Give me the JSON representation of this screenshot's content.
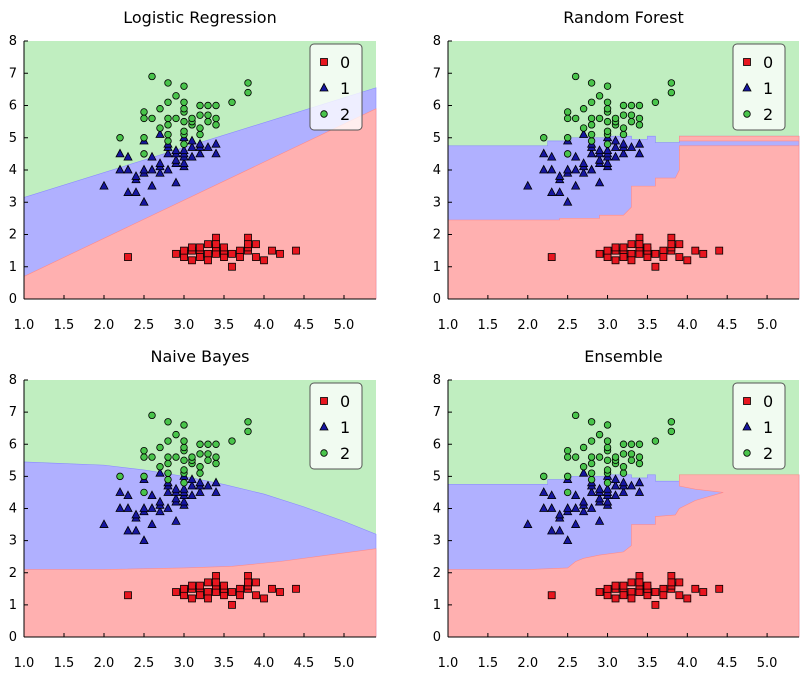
{
  "colors": {
    "class0_region": "#ffb0b0",
    "class1_region": "#b0b0ff",
    "class2_region": "#c0eec0",
    "class0_marker": "#e8161f",
    "class1_marker": "#1616a0",
    "class2_marker": "#49c44b",
    "axis": "#000000"
  },
  "chart_data": [
    {
      "type": "scatter",
      "title": "Logistic Regression",
      "xlim": [
        1.0,
        5.4
      ],
      "ylim": [
        0,
        8
      ],
      "xticks": [
        "1.0",
        "1.5",
        "2.0",
        "2.5",
        "3.0",
        "3.5",
        "4.0",
        "4.5",
        "5.0"
      ],
      "yticks": [
        "0",
        "1",
        "2",
        "3",
        "4",
        "5",
        "6",
        "7",
        "8"
      ],
      "legend": {
        "position": "top-right",
        "entries": [
          "0",
          "1",
          "2"
        ]
      },
      "regions": {
        "class0_upper": [
          [
            1.0,
            0.7
          ],
          [
            5.4,
            5.9
          ]
        ],
        "class1_upper": [
          [
            1.0,
            3.15
          ],
          [
            5.4,
            6.55
          ]
        ]
      }
    },
    {
      "type": "scatter",
      "title": "Random Forest",
      "xlim": [
        1.0,
        5.4
      ],
      "ylim": [
        0,
        8
      ],
      "xticks": [
        "1.0",
        "1.5",
        "2.0",
        "2.5",
        "3.0",
        "3.5",
        "4.0",
        "4.5",
        "5.0"
      ],
      "yticks": [
        "0",
        "1",
        "2",
        "3",
        "4",
        "5",
        "6",
        "7",
        "8"
      ],
      "legend": {
        "position": "top-right",
        "entries": [
          "0",
          "1",
          "2"
        ]
      },
      "regions": {
        "class0_upper": [
          [
            1.0,
            2.45
          ],
          [
            2.4,
            2.45
          ],
          [
            2.4,
            2.5
          ],
          [
            2.9,
            2.5
          ],
          [
            2.9,
            2.6
          ],
          [
            3.2,
            2.6
          ],
          [
            3.3,
            2.85
          ],
          [
            3.3,
            3.5
          ],
          [
            3.6,
            3.5
          ],
          [
            3.6,
            3.75
          ],
          [
            3.85,
            3.75
          ],
          [
            3.9,
            4.0
          ],
          [
            3.9,
            4.75
          ],
          [
            5.4,
            4.75
          ],
          [
            5.4,
            4.9
          ],
          [
            3.9,
            4.9
          ],
          [
            3.9,
            5.05
          ],
          [
            5.4,
            5.05
          ]
        ],
        "class1_upper": [
          [
            1.0,
            4.75
          ],
          [
            2.25,
            4.75
          ],
          [
            2.25,
            4.9
          ],
          [
            2.55,
            4.9
          ],
          [
            2.55,
            5.0
          ],
          [
            3.0,
            5.0
          ],
          [
            3.0,
            5.05
          ],
          [
            3.3,
            5.05
          ],
          [
            3.3,
            4.95
          ],
          [
            3.5,
            4.95
          ],
          [
            3.5,
            5.05
          ],
          [
            3.6,
            5.05
          ],
          [
            3.6,
            4.85
          ],
          [
            3.9,
            4.85
          ],
          [
            3.9,
            5.05
          ],
          [
            5.4,
            5.05
          ]
        ]
      }
    },
    {
      "type": "scatter",
      "title": "Naive Bayes",
      "xlim": [
        1.0,
        5.4
      ],
      "ylim": [
        0,
        8
      ],
      "xticks": [
        "1.0",
        "1.5",
        "2.0",
        "2.5",
        "3.0",
        "3.5",
        "4.0",
        "4.5",
        "5.0"
      ],
      "yticks": [
        "0",
        "1",
        "2",
        "3",
        "4",
        "5",
        "6",
        "7",
        "8"
      ],
      "legend": {
        "position": "top-right",
        "entries": [
          "0",
          "1",
          "2"
        ]
      },
      "regions": {
        "class0_upper": [
          [
            1.0,
            2.1
          ],
          [
            2.0,
            2.1
          ],
          [
            3.0,
            2.15
          ],
          [
            3.6,
            2.2
          ],
          [
            4.2,
            2.35
          ],
          [
            4.8,
            2.55
          ],
          [
            5.4,
            2.75
          ]
        ],
        "class1_upper": [
          [
            1.0,
            5.45
          ],
          [
            1.5,
            5.4
          ],
          [
            2.0,
            5.35
          ],
          [
            2.5,
            5.2
          ],
          [
            3.0,
            5.0
          ],
          [
            3.5,
            4.75
          ],
          [
            4.0,
            4.45
          ],
          [
            4.5,
            4.05
          ],
          [
            5.0,
            3.6
          ],
          [
            5.4,
            3.2
          ]
        ]
      }
    },
    {
      "type": "scatter",
      "title": "Ensemble",
      "xlim": [
        1.0,
        5.4
      ],
      "ylim": [
        0,
        8
      ],
      "xticks": [
        "1.0",
        "1.5",
        "2.0",
        "2.5",
        "3.0",
        "3.5",
        "4.0",
        "4.5",
        "5.0"
      ],
      "yticks": [
        "0",
        "1",
        "2",
        "3",
        "4",
        "5",
        "6",
        "7",
        "8"
      ],
      "legend": {
        "position": "top-right",
        "entries": [
          "0",
          "1",
          "2"
        ]
      },
      "regions": {
        "class0_upper": [
          [
            1.0,
            2.1
          ],
          [
            2.0,
            2.1
          ],
          [
            2.5,
            2.15
          ],
          [
            2.6,
            2.35
          ],
          [
            2.7,
            2.45
          ],
          [
            2.9,
            2.55
          ],
          [
            3.2,
            2.65
          ],
          [
            3.3,
            2.85
          ],
          [
            3.3,
            3.5
          ],
          [
            3.6,
            3.5
          ],
          [
            3.6,
            3.75
          ],
          [
            3.85,
            3.8
          ],
          [
            3.9,
            4.0
          ],
          [
            4.1,
            4.25
          ],
          [
            4.45,
            4.5
          ],
          [
            4.1,
            4.6
          ],
          [
            3.9,
            4.7
          ],
          [
            3.9,
            5.05
          ],
          [
            5.4,
            5.05
          ]
        ],
        "class1_upper": [
          [
            1.0,
            4.75
          ],
          [
            2.25,
            4.75
          ],
          [
            2.25,
            4.9
          ],
          [
            2.55,
            4.9
          ],
          [
            2.55,
            5.0
          ],
          [
            3.0,
            5.0
          ],
          [
            3.0,
            5.05
          ],
          [
            3.3,
            5.05
          ],
          [
            3.3,
            4.95
          ],
          [
            3.5,
            4.95
          ],
          [
            3.5,
            5.05
          ],
          [
            3.6,
            5.05
          ],
          [
            3.6,
            4.85
          ],
          [
            3.9,
            4.85
          ],
          [
            3.9,
            5.05
          ],
          [
            5.4,
            5.05
          ]
        ]
      }
    }
  ],
  "points": {
    "class0": [
      [
        2.3,
        1.3
      ],
      [
        2.9,
        1.4
      ],
      [
        3.0,
        1.4
      ],
      [
        3.0,
        1.3
      ],
      [
        3.0,
        1.5
      ],
      [
        3.1,
        1.5
      ],
      [
        3.1,
        1.6
      ],
      [
        3.1,
        1.2
      ],
      [
        3.2,
        1.4
      ],
      [
        3.2,
        1.6
      ],
      [
        3.2,
        1.3
      ],
      [
        3.3,
        1.4
      ],
      [
        3.3,
        1.7
      ],
      [
        3.3,
        1.2
      ],
      [
        3.4,
        1.5
      ],
      [
        3.4,
        1.4
      ],
      [
        3.4,
        1.9
      ],
      [
        3.4,
        1.6
      ],
      [
        3.4,
        1.7
      ],
      [
        3.5,
        1.4
      ],
      [
        3.5,
        1.3
      ],
      [
        3.5,
        1.5
      ],
      [
        3.5,
        1.6
      ],
      [
        3.6,
        1.4
      ],
      [
        3.6,
        1.0
      ],
      [
        3.7,
        1.5
      ],
      [
        3.7,
        1.3
      ],
      [
        3.8,
        1.5
      ],
      [
        3.8,
        1.9
      ],
      [
        3.8,
        1.6
      ],
      [
        3.8,
        1.7
      ],
      [
        3.9,
        1.3
      ],
      [
        3.9,
        1.7
      ],
      [
        4.0,
        1.2
      ],
      [
        4.1,
        1.5
      ],
      [
        4.2,
        1.4
      ],
      [
        4.4,
        1.5
      ]
    ],
    "class1": [
      [
        2.0,
        3.5
      ],
      [
        2.2,
        4.0
      ],
      [
        2.2,
        4.5
      ],
      [
        2.3,
        4.0
      ],
      [
        2.3,
        3.3
      ],
      [
        2.3,
        4.4
      ],
      [
        2.4,
        3.3
      ],
      [
        2.4,
        3.7
      ],
      [
        2.4,
        3.8
      ],
      [
        2.5,
        3.0
      ],
      [
        2.5,
        3.9
      ],
      [
        2.5,
        4.0
      ],
      [
        2.5,
        4.9
      ],
      [
        2.6,
        3.5
      ],
      [
        2.6,
        4.0
      ],
      [
        2.6,
        4.4
      ],
      [
        2.7,
        3.9
      ],
      [
        2.7,
        4.1
      ],
      [
        2.7,
        4.2
      ],
      [
        2.7,
        5.1
      ],
      [
        2.8,
        4.0
      ],
      [
        2.8,
        4.5
      ],
      [
        2.8,
        4.7
      ],
      [
        2.8,
        4.8
      ],
      [
        2.9,
        3.6
      ],
      [
        2.9,
        4.2
      ],
      [
        2.9,
        4.3
      ],
      [
        2.9,
        4.5
      ],
      [
        2.9,
        4.6
      ],
      [
        3.0,
        4.1
      ],
      [
        3.0,
        4.2
      ],
      [
        3.0,
        4.4
      ],
      [
        3.0,
        4.5
      ],
      [
        3.0,
        4.6
      ],
      [
        3.0,
        5.0
      ],
      [
        3.1,
        4.4
      ],
      [
        3.1,
        4.7
      ],
      [
        3.1,
        4.9
      ],
      [
        3.2,
        4.5
      ],
      [
        3.2,
        4.7
      ],
      [
        3.2,
        4.8
      ],
      [
        3.3,
        4.7
      ],
      [
        3.4,
        4.5
      ],
      [
        3.4,
        4.8
      ]
    ],
    "class2": [
      [
        2.2,
        5.0
      ],
      [
        2.5,
        5.0
      ],
      [
        2.5,
        5.8
      ],
      [
        2.5,
        4.5
      ],
      [
        2.5,
        5.6
      ],
      [
        2.6,
        5.6
      ],
      [
        2.6,
        6.9
      ],
      [
        2.7,
        5.3
      ],
      [
        2.7,
        5.9
      ],
      [
        2.8,
        4.9
      ],
      [
        2.8,
        5.1
      ],
      [
        2.8,
        5.6
      ],
      [
        2.8,
        6.1
      ],
      [
        2.8,
        6.7
      ],
      [
        2.8,
        5.4
      ],
      [
        2.9,
        6.3
      ],
      [
        2.9,
        5.6
      ],
      [
        3.0,
        5.1
      ],
      [
        3.0,
        5.2
      ],
      [
        3.0,
        5.5
      ],
      [
        3.0,
        5.8
      ],
      [
        3.0,
        5.9
      ],
      [
        3.0,
        6.6
      ],
      [
        3.0,
        6.1
      ],
      [
        3.0,
        4.8
      ],
      [
        3.1,
        5.4
      ],
      [
        3.1,
        5.5
      ],
      [
        3.1,
        5.6
      ],
      [
        3.2,
        5.1
      ],
      [
        3.2,
        5.7
      ],
      [
        3.2,
        6.0
      ],
      [
        3.2,
        5.3
      ],
      [
        3.3,
        5.7
      ],
      [
        3.3,
        6.0
      ],
      [
        3.3,
        5.5
      ],
      [
        3.4,
        5.4
      ],
      [
        3.4,
        5.6
      ],
      [
        3.4,
        6.0
      ],
      [
        3.6,
        6.1
      ],
      [
        3.8,
        6.4
      ],
      [
        3.8,
        6.7
      ]
    ]
  }
}
